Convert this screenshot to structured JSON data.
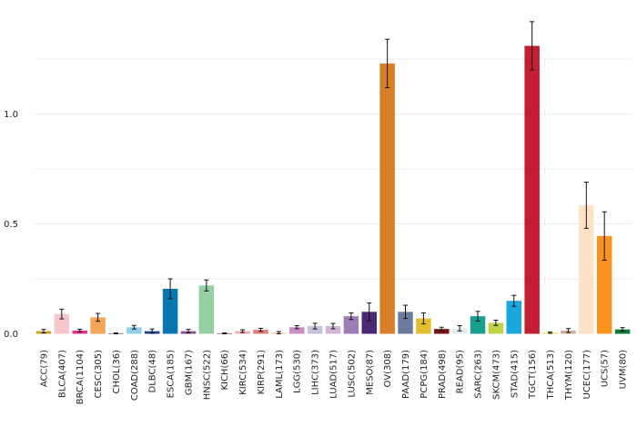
{
  "chart_data": {
    "type": "bar",
    "title": "",
    "xlabel": "",
    "ylabel": "",
    "ylim": [
      0,
      1.5
    ],
    "yticks": [
      "0.0",
      "0.5",
      "1.0"
    ],
    "grid": true,
    "error_bars": true,
    "categories": [
      "ACC(79)",
      "BLCA(407)",
      "BRCA(1104)",
      "CESC(305)",
      "CHOL(36)",
      "COAD(288)",
      "DLBC(48)",
      "ESCA(185)",
      "GBM(167)",
      "HNSC(522)",
      "KICH(66)",
      "KIRC(534)",
      "KIRP(291)",
      "LAML(173)",
      "LGG(530)",
      "LIHC(373)",
      "LUAD(517)",
      "LUSC(502)",
      "MESO(87)",
      "OV(308)",
      "PAAD(179)",
      "PCPG(184)",
      "PRAD(498)",
      "READ(95)",
      "SARC(263)",
      "SKCM(473)",
      "STAD(415)",
      "TGCT(156)",
      "THCA(513)",
      "THYM(120)",
      "UCEC(177)",
      "UCS(57)",
      "UVM(80)"
    ],
    "values": [
      0.012,
      0.09,
      0.015,
      0.075,
      0.002,
      0.03,
      0.012,
      0.205,
      0.012,
      0.22,
      0.002,
      0.012,
      0.018,
      0.005,
      0.03,
      0.035,
      0.035,
      0.08,
      0.1,
      1.23,
      0.1,
      0.07,
      0.022,
      0.025,
      0.08,
      0.05,
      0.15,
      1.31,
      0.005,
      0.015,
      0.585,
      0.445,
      0.02
    ],
    "errors": [
      0.008,
      0.022,
      0.006,
      0.018,
      0.002,
      0.008,
      0.01,
      0.045,
      0.008,
      0.025,
      0.002,
      0.006,
      0.007,
      0.005,
      0.007,
      0.013,
      0.012,
      0.015,
      0.04,
      0.11,
      0.03,
      0.025,
      0.008,
      0.012,
      0.022,
      0.012,
      0.025,
      0.11,
      0.003,
      0.009,
      0.105,
      0.11,
      0.008
    ],
    "colors": [
      "#C9A227",
      "#F6C6CF",
      "#E0338A",
      "#F4A75A",
      "#2F2F7A",
      "#8ECFEA",
      "#24408E",
      "#0877B0",
      "#8E4E8E",
      "#96CFA4",
      "#6C1E1E",
      "#F5B0B2",
      "#E57B7B",
      "#F0C0A0",
      "#CC8EC6",
      "#C4C2DC",
      "#D0B6D8",
      "#9C7DB6",
      "#4A2874",
      "#D97F27",
      "#6C7A9C",
      "#E3BE2E",
      "#7A1517",
      "#E0EEF2",
      "#18A08C",
      "#C0D14A",
      "#1AA7E0",
      "#C41E35",
      "#F6D94A",
      "#C8B09A",
      "#FCE3C8",
      "#F7931E",
      "#107A3A"
    ]
  }
}
